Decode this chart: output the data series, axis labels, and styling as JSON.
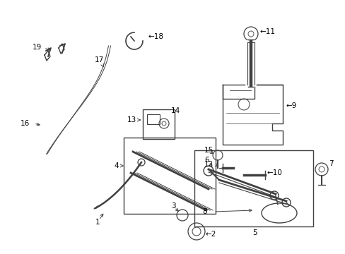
{
  "background_color": "#ffffff",
  "line_color": "#404040",
  "text_color": "#000000",
  "figsize": [
    4.89,
    3.6
  ],
  "dpi": 100
}
